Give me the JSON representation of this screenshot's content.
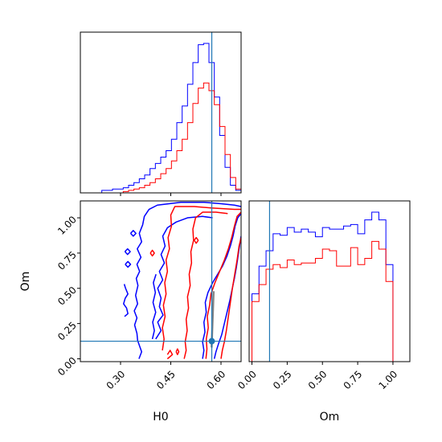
{
  "chart_data": [
    {
      "panel": "H0-marginal",
      "type": "histogram",
      "xlim": [
        0.18,
        0.66
      ],
      "bin_edges": [
        0.18,
        0.196,
        0.212,
        0.228,
        0.244,
        0.26,
        0.276,
        0.292,
        0.308,
        0.324,
        0.34,
        0.356,
        0.372,
        0.388,
        0.404,
        0.42,
        0.436,
        0.452,
        0.468,
        0.484,
        0.5,
        0.516,
        0.532,
        0.548,
        0.564,
        0.58,
        0.596,
        0.612,
        0.628,
        0.644,
        0.66
      ],
      "truth": 0.5725,
      "series": [
        {
          "color": "#0000ff",
          "counts": [
            0,
            0,
            0,
            0,
            2,
            2,
            3,
            3,
            4,
            6,
            8,
            11,
            14,
            19,
            23,
            28,
            33,
            42,
            55,
            68,
            85,
            102,
            116,
            117,
            102,
            75,
            45,
            20,
            6,
            2
          ]
        },
        {
          "color": "#ff0000",
          "counts": [
            0,
            0,
            0,
            0,
            0,
            0,
            0,
            0,
            1,
            2,
            3,
            4,
            6,
            8,
            11,
            15,
            19,
            25,
            33,
            42,
            55,
            70,
            82,
            86,
            80,
            69,
            52,
            30,
            12,
            3
          ]
        }
      ]
    },
    {
      "panel": "H0-Om-2d",
      "type": "contour",
      "xlabel": "H0",
      "ylabel": "Om",
      "xlim": [
        0.18,
        0.66
      ],
      "ylim": [
        -0.02,
        1.12
      ],
      "xticks": [
        "0.30",
        "0.45",
        "0.60"
      ],
      "xtick_values": [
        0.3,
        0.45,
        0.6
      ],
      "yticks": [
        "0.00",
        "0.25",
        "0.50",
        "0.75",
        "1.00"
      ],
      "ytick_values": [
        0.0,
        0.25,
        0.5,
        0.75,
        1.0
      ],
      "truth": {
        "x": 0.5725,
        "y": 0.125
      },
      "series": [
        {
          "color": "#0000ff",
          "contours": [
            [
              [
                0.355,
                0.0
              ],
              [
                0.363,
                0.05
              ],
              [
                0.357,
                0.09
              ],
              [
                0.351,
                0.13
              ],
              [
                0.349,
                0.18
              ],
              [
                0.342,
                0.24
              ],
              [
                0.349,
                0.29
              ],
              [
                0.341,
                0.34
              ],
              [
                0.351,
                0.39
              ],
              [
                0.345,
                0.45
              ],
              [
                0.352,
                0.52
              ],
              [
                0.347,
                0.57
              ],
              [
                0.357,
                0.62
              ],
              [
                0.349,
                0.67
              ],
              [
                0.361,
                0.72
              ],
              [
                0.35,
                0.78
              ],
              [
                0.363,
                0.83
              ],
              [
                0.356,
                0.89
              ],
              [
                0.366,
                0.95
              ],
              [
                0.371,
                1.01
              ],
              [
                0.385,
                1.06
              ],
              [
                0.41,
                1.09
              ],
              [
                0.48,
                1.11
              ],
              [
                0.55,
                1.11
              ],
              [
                0.6,
                1.1
              ],
              [
                0.64,
                1.09
              ],
              [
                0.66,
                1.08
              ]
            ],
            [
              [
                0.545,
                0.0
              ],
              [
                0.549,
                0.06
              ],
              [
                0.545,
                0.12
              ],
              [
                0.552,
                0.19
              ],
              [
                0.549,
                0.26
              ],
              [
                0.556,
                0.33
              ],
              [
                0.553,
                0.4
              ],
              [
                0.561,
                0.47
              ],
              [
                0.575,
                0.54
              ],
              [
                0.59,
                0.6
              ],
              [
                0.605,
                0.66
              ],
              [
                0.618,
                0.73
              ],
              [
                0.628,
                0.8
              ],
              [
                0.636,
                0.87
              ],
              [
                0.642,
                0.94
              ],
              [
                0.65,
                1.0
              ],
              [
                0.66,
                1.03
              ]
            ],
            [
              [
                0.58,
                0.0
              ],
              [
                0.585,
                0.05
              ],
              [
                0.593,
                0.11
              ],
              [
                0.602,
                0.17
              ],
              [
                0.61,
                0.25
              ],
              [
                0.618,
                0.33
              ],
              [
                0.626,
                0.41
              ],
              [
                0.633,
                0.49
              ],
              [
                0.64,
                0.57
              ],
              [
                0.646,
                0.65
              ],
              [
                0.651,
                0.73
              ],
              [
                0.656,
                0.81
              ],
              [
                0.66,
                0.87
              ]
            ],
            [
              [
                0.405,
                0.14
              ],
              [
                0.421,
                0.2
              ],
              [
                0.411,
                0.26
              ],
              [
                0.427,
                0.31
              ],
              [
                0.416,
                0.37
              ],
              [
                0.421,
                0.43
              ],
              [
                0.411,
                0.5
              ],
              [
                0.426,
                0.56
              ],
              [
                0.416,
                0.62
              ],
              [
                0.431,
                0.68
              ],
              [
                0.421,
                0.74
              ],
              [
                0.433,
                0.8
              ],
              [
                0.426,
                0.87
              ],
              [
                0.44,
                0.93
              ],
              [
                0.466,
                0.97
              ],
              [
                0.5,
                1.0
              ],
              [
                0.545,
                1.01
              ],
              [
                0.575,
                1.0
              ]
            ],
            [
              [
                0.395,
                0.14
              ],
              [
                0.401,
                0.2
              ],
              [
                0.396,
                0.26
              ],
              [
                0.405,
                0.33
              ],
              [
                0.397,
                0.4
              ],
              [
                0.404,
                0.47
              ],
              [
                0.398,
                0.54
              ],
              [
                0.406,
                0.6
              ]
            ],
            [
              [
                0.312,
                0.3
              ],
              [
                0.322,
                0.32
              ],
              [
                0.318,
                0.36
              ],
              [
                0.309,
                0.39
              ],
              [
                0.314,
                0.43
              ],
              [
                0.322,
                0.46
              ],
              [
                0.315,
                0.5
              ],
              [
                0.311,
                0.53
              ]
            ],
            [
              [
                0.313,
                0.76
              ],
              [
                0.321,
                0.74
              ],
              [
                0.329,
                0.76
              ],
              [
                0.321,
                0.78
              ],
              [
                0.313,
                0.76
              ]
            ],
            [
              [
                0.314,
                0.67
              ],
              [
                0.322,
                0.65
              ],
              [
                0.33,
                0.67
              ],
              [
                0.322,
                0.69
              ],
              [
                0.314,
                0.67
              ]
            ],
            [
              [
                0.33,
                0.89
              ],
              [
                0.338,
                0.87
              ],
              [
                0.346,
                0.89
              ],
              [
                0.338,
                0.91
              ],
              [
                0.33,
                0.89
              ]
            ]
          ]
        },
        {
          "color": "#ff0000",
          "contours": [
            [
              [
                0.44,
                0.0
              ],
              [
                0.455,
                0.03
              ],
              [
                0.448,
                0.06
              ],
              [
                0.44,
                0.03
              ]
            ],
            [
              [
                0.425,
                0.06
              ],
              [
                0.43,
                0.14
              ],
              [
                0.425,
                0.22
              ],
              [
                0.433,
                0.3
              ],
              [
                0.428,
                0.38
              ],
              [
                0.436,
                0.46
              ],
              [
                0.432,
                0.54
              ],
              [
                0.44,
                0.62
              ],
              [
                0.436,
                0.7
              ],
              [
                0.446,
                0.78
              ],
              [
                0.442,
                0.86
              ],
              [
                0.452,
                0.94
              ],
              [
                0.45,
                1.02
              ],
              [
                0.462,
                1.08
              ],
              [
                0.52,
                1.08
              ],
              [
                0.57,
                1.07
              ],
              [
                0.64,
                1.06
              ],
              [
                0.66,
                1.06
              ]
            ],
            [
              [
                0.555,
                0.0
              ],
              [
                0.558,
                0.07
              ],
              [
                0.556,
                0.14
              ],
              [
                0.562,
                0.22
              ],
              [
                0.559,
                0.3
              ],
              [
                0.566,
                0.38
              ],
              [
                0.57,
                0.46
              ],
              [
                0.582,
                0.54
              ],
              [
                0.596,
                0.62
              ],
              [
                0.61,
                0.7
              ],
              [
                0.622,
                0.78
              ],
              [
                0.632,
                0.86
              ],
              [
                0.64,
                0.94
              ],
              [
                0.648,
                1.01
              ],
              [
                0.66,
                1.04
              ]
            ],
            [
              [
                0.6,
                0.0
              ],
              [
                0.604,
                0.06
              ],
              [
                0.61,
                0.12
              ],
              [
                0.616,
                0.2
              ],
              [
                0.622,
                0.3
              ],
              [
                0.628,
                0.4
              ],
              [
                0.634,
                0.5
              ],
              [
                0.641,
                0.6
              ],
              [
                0.648,
                0.7
              ],
              [
                0.654,
                0.8
              ],
              [
                0.66,
                0.86
              ]
            ],
            [
              [
                0.49,
                0.0
              ],
              [
                0.496,
                0.06
              ],
              [
                0.493,
                0.12
              ],
              [
                0.499,
                0.2
              ],
              [
                0.496,
                0.28
              ],
              [
                0.503,
                0.36
              ],
              [
                0.5,
                0.44
              ],
              [
                0.508,
                0.52
              ],
              [
                0.505,
                0.6
              ],
              [
                0.512,
                0.68
              ],
              [
                0.51,
                0.76
              ],
              [
                0.518,
                0.84
              ],
              [
                0.516,
                0.92
              ],
              [
                0.524,
                1.0
              ],
              [
                0.545,
                1.04
              ],
              [
                0.585,
                1.04
              ],
              [
                0.62,
                1.03
              ]
            ],
            [
              [
                0.389,
                0.75
              ],
              [
                0.395,
                0.73
              ],
              [
                0.401,
                0.75
              ],
              [
                0.395,
                0.77
              ],
              [
                0.389,
                0.75
              ]
            ],
            [
              [
                0.52,
                0.84
              ],
              [
                0.526,
                0.82
              ],
              [
                0.532,
                0.84
              ],
              [
                0.526,
                0.86
              ],
              [
                0.52,
                0.84
              ]
            ],
            [
              [
                0.466,
                0.05
              ],
              [
                0.47,
                0.03
              ],
              [
                0.474,
                0.05
              ],
              [
                0.47,
                0.07
              ],
              [
                0.466,
                0.05
              ]
            ]
          ]
        }
      ]
    },
    {
      "panel": "Om-marginal",
      "type": "histogram",
      "xlabel": "Om",
      "xlim": [
        -0.02,
        1.12
      ],
      "xticks": [
        "0.00",
        "0.25",
        "0.50",
        "0.75",
        "1.00"
      ],
      "xtick_values": [
        0.0,
        0.25,
        0.5,
        0.75,
        1.0
      ],
      "bin_edges": [
        0.0,
        0.05,
        0.1,
        0.15,
        0.2,
        0.25,
        0.3,
        0.35,
        0.4,
        0.45,
        0.5,
        0.55,
        0.6,
        0.65,
        0.7,
        0.75,
        0.8,
        0.85,
        0.9,
        0.95,
        1.0
      ],
      "truth": 0.125,
      "series": [
        {
          "color": "#0000ff",
          "counts": [
            44,
            62,
            72,
            83,
            82,
            87,
            84,
            86,
            84,
            81,
            87,
            86,
            86,
            88,
            89,
            83,
            92,
            97,
            92,
            63
          ]
        },
        {
          "color": "#ff0000",
          "counts": [
            39,
            50,
            60,
            63,
            61,
            66,
            63,
            64,
            64,
            67,
            73,
            72,
            62,
            62,
            74,
            63,
            67,
            78,
            73,
            52
          ]
        }
      ]
    }
  ]
}
